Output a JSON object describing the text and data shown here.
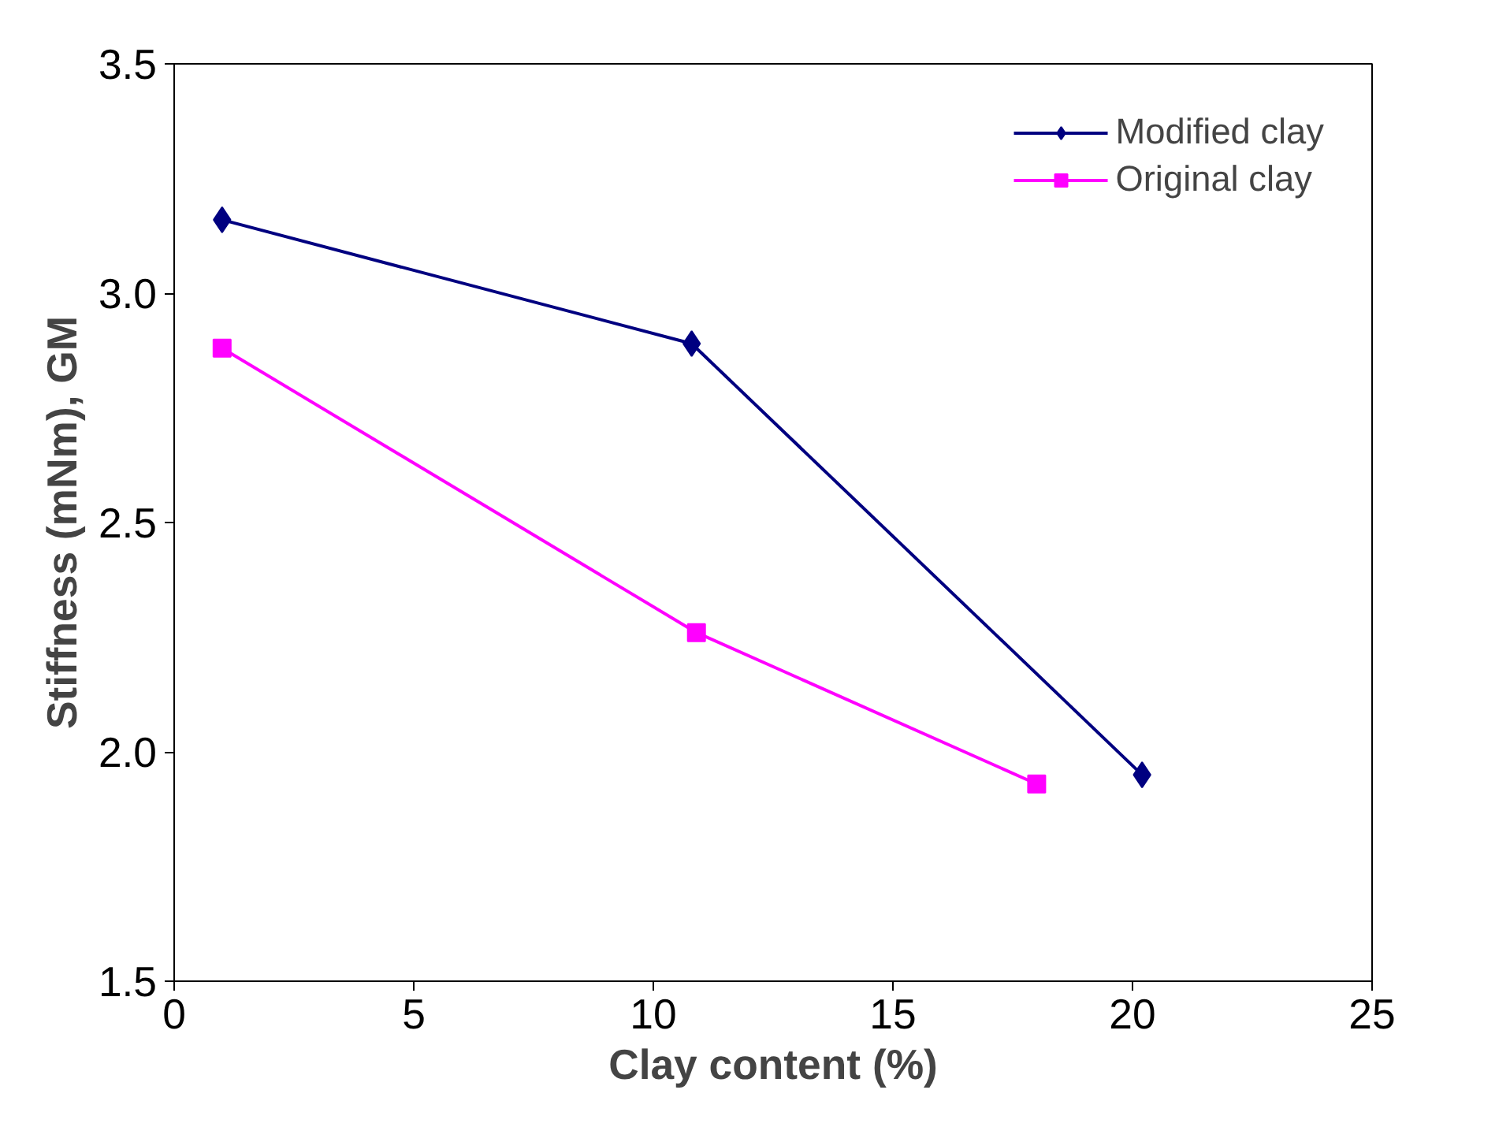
{
  "chart_data": {
    "type": "line",
    "xlabel": "Clay content (%)",
    "ylabel": "Stiffness (mNm), GM",
    "series": [
      {
        "name": "Modified clay",
        "color": "#000080",
        "marker": "diamond",
        "x": [
          1.0,
          10.8,
          20.2
        ],
        "values": [
          3.16,
          2.89,
          1.95
        ]
      },
      {
        "name": "Original clay",
        "color": "#ff00ff",
        "marker": "square",
        "x": [
          1.0,
          10.9,
          18.0
        ],
        "values": [
          2.88,
          2.26,
          1.93
        ]
      }
    ],
    "xlim": [
      0,
      25
    ],
    "xticks": [
      0,
      5,
      10,
      15,
      20,
      25
    ],
    "ylim": [
      1.5,
      3.5
    ],
    "yticks": [
      1.5,
      {
        "value": 2,
        "label": "2.0"
      },
      2.5,
      {
        "value": 3,
        "label": "3.0"
      },
      3.5
    ],
    "grid": false,
    "legend": "top right"
  }
}
